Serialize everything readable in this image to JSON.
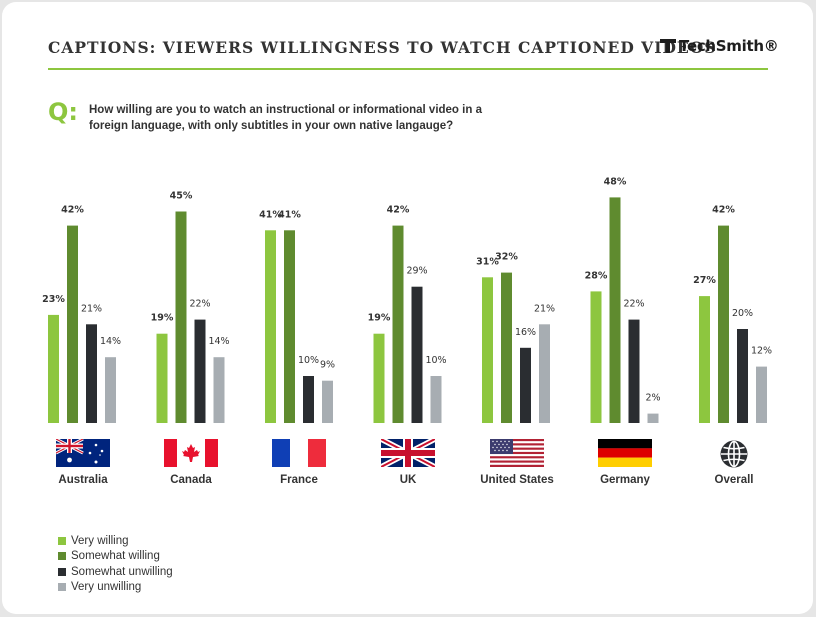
{
  "header": {
    "title": "CAPTIONS: VIEWERS WILLINGNESS TO WATCH CAPTIONED VIDEOS",
    "logo_text": "TechSmith®"
  },
  "question": {
    "marker": "Q:",
    "text": "How willing are you to watch an instructional or informational video in a foreign language, with only subtitles in your own native langauge?"
  },
  "colors": {
    "very_willing": "#8dc63f",
    "somewhat_willing": "#5f8b2f",
    "somewhat_unwilling": "#2a2d31",
    "very_unwilling": "#a7adb2",
    "accent_rule": "#8dc63f"
  },
  "icons": [
    "flag-australia-icon",
    "flag-canada-icon",
    "flag-france-icon",
    "flag-uk-icon",
    "flag-us-icon",
    "flag-germany-icon",
    "globe-icon",
    "techsmith-logo-icon"
  ],
  "chart_data": {
    "type": "bar",
    "categories": [
      "Australia",
      "Canada",
      "France",
      "UK",
      "United States",
      "Germany",
      "Overall"
    ],
    "series": [
      {
        "name": "Very willing",
        "values": [
          23,
          19,
          41,
          19,
          31,
          28,
          27
        ],
        "value_labels": [
          "23%",
          "19%",
          "41%",
          "19%",
          "31%",
          "28%",
          "27%"
        ]
      },
      {
        "name": "Somewhat willing",
        "values": [
          42,
          45,
          41,
          42,
          32,
          48,
          42
        ],
        "value_labels": [
          "42%",
          "45%",
          "41%",
          "42%",
          "32%",
          "48%",
          "42%"
        ]
      },
      {
        "name": "Somewhat unwilling",
        "values": [
          21,
          22,
          10,
          29,
          16,
          22,
          20
        ],
        "value_labels": [
          "21%",
          "22%",
          "10%",
          "29%",
          "16%",
          "22%",
          "20%"
        ]
      },
      {
        "name": "Very unwilling",
        "values": [
          14,
          14,
          9,
          10,
          21,
          2,
          12
        ],
        "value_labels": [
          "14%",
          "14%",
          "9%",
          "10%",
          "21%",
          "2%",
          "12%"
        ]
      }
    ],
    "bold_value_labels": [
      "Very willing",
      "Somewhat willing"
    ],
    "ylim": [
      0,
      50
    ],
    "grid": false,
    "legend_position": "bottom-left"
  }
}
